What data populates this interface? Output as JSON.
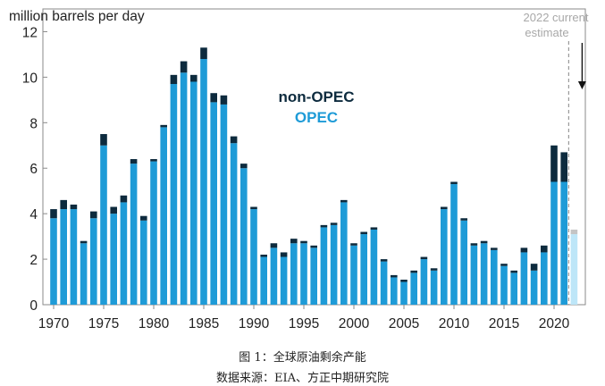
{
  "caption": {
    "figure": "图 1：全球原油剩余产能",
    "source": "数据来源：EIA、方正中期研究院"
  },
  "chart_data": {
    "type": "bar",
    "stacked": true,
    "ylabel": "million barrels per day",
    "xlabel": "",
    "ylim": [
      0,
      13
    ],
    "yticks": [
      0,
      2,
      4,
      6,
      8,
      10,
      12
    ],
    "xticks": [
      1970,
      1975,
      1980,
      1985,
      1990,
      1995,
      2000,
      2005,
      2010,
      2015,
      2020
    ],
    "grid": false,
    "legend": {
      "placement": "top-center-inside"
    },
    "categories": [
      1970,
      1971,
      1972,
      1973,
      1974,
      1975,
      1976,
      1977,
      1978,
      1979,
      1980,
      1981,
      1982,
      1983,
      1984,
      1985,
      1986,
      1987,
      1988,
      1989,
      1990,
      1991,
      1992,
      1993,
      1994,
      1995,
      1996,
      1997,
      1998,
      1999,
      2000,
      2001,
      2002,
      2003,
      2004,
      2005,
      2006,
      2007,
      2008,
      2009,
      2010,
      2011,
      2012,
      2013,
      2014,
      2015,
      2016,
      2017,
      2018,
      2019,
      2020,
      2021
    ],
    "series": [
      {
        "name": "OPEC",
        "color": "#1E9BD7",
        "values": [
          3.8,
          4.2,
          4.2,
          2.7,
          3.8,
          7.0,
          4.0,
          4.5,
          6.2,
          3.7,
          6.3,
          7.8,
          9.7,
          10.2,
          9.8,
          10.8,
          8.9,
          8.8,
          7.1,
          6.0,
          4.2,
          2.1,
          2.5,
          2.1,
          2.7,
          2.7,
          2.5,
          3.4,
          3.5,
          4.5,
          2.6,
          3.1,
          3.3,
          1.9,
          1.2,
          1.0,
          1.4,
          2.0,
          1.5,
          4.2,
          5.3,
          3.7,
          2.6,
          2.7,
          2.4,
          1.7,
          1.4,
          2.3,
          1.5,
          2.3,
          5.4,
          5.4
        ]
      },
      {
        "name": "non-OPEC",
        "color": "#0D2B3E",
        "values": [
          0.4,
          0.4,
          0.2,
          0.1,
          0.3,
          0.5,
          0.3,
          0.3,
          0.2,
          0.2,
          0.1,
          0.1,
          0.4,
          0.5,
          0.3,
          0.5,
          0.4,
          0.4,
          0.3,
          0.2,
          0.1,
          0.1,
          0.2,
          0.2,
          0.2,
          0.1,
          0.1,
          0.1,
          0.1,
          0.1,
          0.1,
          0.1,
          0.1,
          0.1,
          0.1,
          0.1,
          0.1,
          0.1,
          0.1,
          0.1,
          0.1,
          0.1,
          0.1,
          0.1,
          0.1,
          0.1,
          0.1,
          0.2,
          0.3,
          0.3,
          1.6,
          1.3
        ]
      }
    ],
    "estimate": {
      "label_line1": "2022 current",
      "label_line2": "estimate",
      "year": 2022,
      "opec_value": 3.1,
      "non_opec_value": 0.2,
      "opec_color": "#BDE6F8",
      "non_opec_color": "#C4C4C4"
    }
  }
}
